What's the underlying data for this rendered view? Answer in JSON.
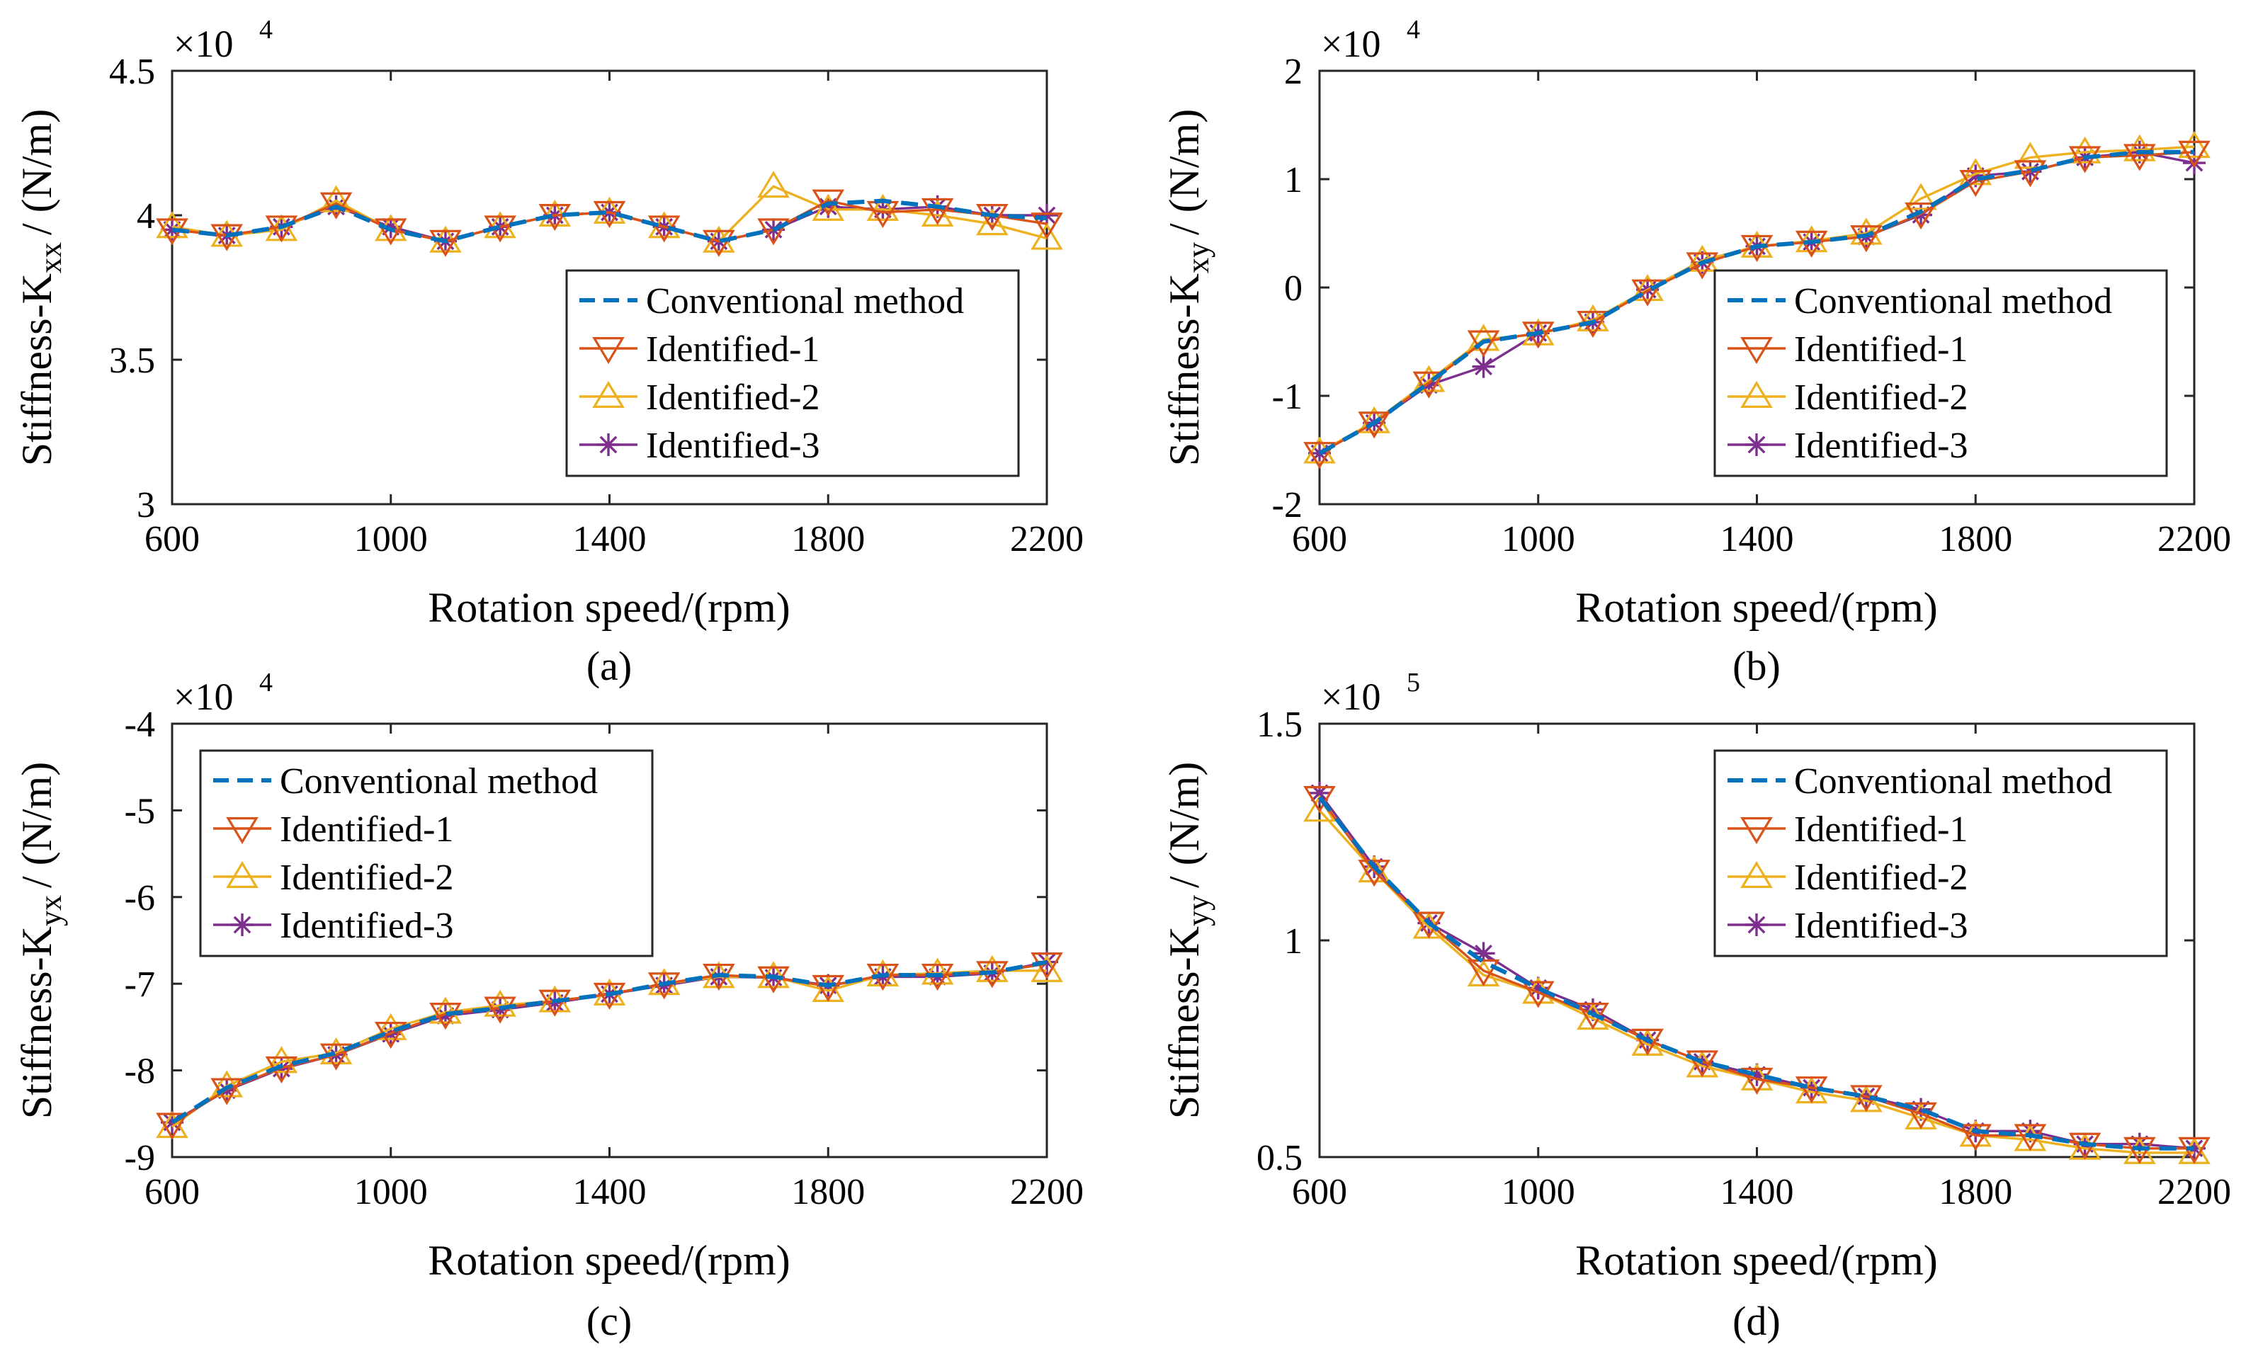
{
  "figure": {
    "colors": {
      "conventional": "#0072BD",
      "identified1": "#D95319",
      "identified2": "#EDB120",
      "identified3": "#7E2F8E"
    }
  },
  "chart_data": [
    {
      "type": "line",
      "caption": "(a)",
      "ylabel_main": "Stiffness-K",
      "ylabel_sub": "xx",
      "ylabel_unit": "/ (N/m)",
      "xlabel": "Rotation speed/(rpm)",
      "multiplier": "×10",
      "multiplier_exp": "4",
      "xlim": [
        600,
        2200
      ],
      "ylim": [
        3,
        4.5
      ],
      "xticks": [
        "600",
        "1000",
        "1400",
        "1800",
        "2200"
      ],
      "xtick_values": [
        600,
        1000,
        1400,
        1800,
        2200
      ],
      "yticks": [
        "3",
        "3.5",
        "4",
        "4.5"
      ],
      "ytick_values": [
        3,
        3.5,
        4,
        4.5
      ],
      "legend_position": "lower-right",
      "x": [
        600,
        700,
        800,
        900,
        1000,
        1100,
        1200,
        1300,
        1400,
        1500,
        1600,
        1700,
        1800,
        1900,
        2000,
        2100,
        2200
      ],
      "series": [
        {
          "name": "Conventional method",
          "style": "dashed",
          "values": [
            3.95,
            3.93,
            3.96,
            4.03,
            3.95,
            3.91,
            3.96,
            4.0,
            4.01,
            3.96,
            3.91,
            3.95,
            4.04,
            4.05,
            4.03,
            4.0,
            3.99
          ]
        },
        {
          "name": "Identified-1",
          "style": "triangle-down",
          "values": [
            3.95,
            3.93,
            3.96,
            4.04,
            3.95,
            3.91,
            3.96,
            4.0,
            4.01,
            3.96,
            3.91,
            3.95,
            4.05,
            4.01,
            4.02,
            4.0,
            3.97
          ]
        },
        {
          "name": "Identified-2",
          "style": "triangle-up",
          "values": [
            3.96,
            3.93,
            3.95,
            4.05,
            3.95,
            3.91,
            3.96,
            4.0,
            4.01,
            3.96,
            3.91,
            4.1,
            4.02,
            4.02,
            4.0,
            3.97,
            3.92
          ]
        },
        {
          "name": "Identified-3",
          "style": "star",
          "values": [
            3.95,
            3.93,
            3.96,
            4.03,
            3.96,
            3.91,
            3.96,
            4.0,
            4.01,
            3.96,
            3.91,
            3.95,
            4.03,
            4.02,
            4.03,
            4.0,
            4.0
          ]
        }
      ]
    },
    {
      "type": "line",
      "caption": "(b)",
      "ylabel_main": "Stiffness-K",
      "ylabel_sub": "xy",
      "ylabel_unit": "/ (N/m)",
      "xlabel": "Rotation speed/(rpm)",
      "multiplier": "×10",
      "multiplier_exp": "4",
      "xlim": [
        600,
        2200
      ],
      "ylim": [
        -2,
        2
      ],
      "xticks": [
        "600",
        "1000",
        "1400",
        "1800",
        "2200"
      ],
      "xtick_values": [
        600,
        1000,
        1400,
        1800,
        2200
      ],
      "yticks": [
        "-2",
        "-1",
        "0",
        "1",
        "2"
      ],
      "ytick_values": [
        -2,
        -1,
        0,
        1,
        2
      ],
      "legend_position": "lower-right",
      "x": [
        600,
        700,
        800,
        900,
        1000,
        1100,
        1200,
        1300,
        1400,
        1500,
        1600,
        1700,
        1800,
        1900,
        2000,
        2100,
        2200
      ],
      "series": [
        {
          "name": "Conventional method",
          "style": "dashed",
          "values": [
            -1.53,
            -1.25,
            -0.88,
            -0.5,
            -0.42,
            -0.32,
            -0.03,
            0.23,
            0.38,
            0.42,
            0.48,
            0.7,
            1.0,
            1.08,
            1.2,
            1.25,
            1.25
          ]
        },
        {
          "name": "Identified-1",
          "style": "triangle-down",
          "values": [
            -1.53,
            -1.25,
            -0.88,
            -0.5,
            -0.42,
            -0.32,
            -0.03,
            0.22,
            0.38,
            0.42,
            0.47,
            0.68,
            0.98,
            1.07,
            1.2,
            1.22,
            1.25
          ]
        },
        {
          "name": "Identified-2",
          "style": "triangle-up",
          "values": [
            -1.52,
            -1.24,
            -0.86,
            -0.48,
            -0.43,
            -0.3,
            -0.02,
            0.25,
            0.38,
            0.43,
            0.5,
            0.82,
            1.05,
            1.2,
            1.25,
            1.27,
            1.3
          ]
        },
        {
          "name": "Identified-3",
          "style": "star",
          "values": [
            -1.53,
            -1.25,
            -0.9,
            -0.73,
            -0.42,
            -0.32,
            -0.02,
            0.23,
            0.38,
            0.42,
            0.47,
            0.67,
            1.03,
            1.07,
            1.2,
            1.25,
            1.15
          ]
        }
      ]
    },
    {
      "type": "line",
      "caption": "(c)",
      "ylabel_main": "Stiffness-K",
      "ylabel_sub": "yx",
      "ylabel_unit": "/ (N/m)",
      "xlabel": "Rotation speed/(rpm)",
      "multiplier": "×10",
      "multiplier_exp": "4",
      "xlim": [
        600,
        2200
      ],
      "ylim": [
        -9,
        -4
      ],
      "xticks": [
        "600",
        "1000",
        "1400",
        "1800",
        "2200"
      ],
      "xtick_values": [
        600,
        1000,
        1400,
        1800,
        2200
      ],
      "yticks": [
        "-9",
        "-8",
        "-7",
        "-6",
        "-5",
        "-4"
      ],
      "ytick_values": [
        -9,
        -8,
        -7,
        -6,
        -5,
        -4
      ],
      "legend_position": "top-left",
      "x": [
        600,
        700,
        800,
        900,
        1000,
        1100,
        1200,
        1300,
        1400,
        1500,
        1600,
        1700,
        1800,
        1900,
        2000,
        2100,
        2200
      ],
      "series": [
        {
          "name": "Conventional method",
          "style": "dashed",
          "values": [
            -8.6,
            -8.2,
            -7.95,
            -7.8,
            -7.55,
            -7.35,
            -7.28,
            -7.2,
            -7.12,
            -7.0,
            -6.9,
            -6.92,
            -7.02,
            -6.9,
            -6.9,
            -6.87,
            -6.75
          ]
        },
        {
          "name": "Identified-1",
          "style": "triangle-down",
          "values": [
            -8.62,
            -8.22,
            -7.97,
            -7.82,
            -7.57,
            -7.35,
            -7.28,
            -7.2,
            -7.12,
            -7.0,
            -6.9,
            -6.93,
            -7.03,
            -6.9,
            -6.9,
            -6.87,
            -6.77
          ]
        },
        {
          "name": "Identified-2",
          "style": "triangle-up",
          "values": [
            -8.65,
            -8.18,
            -7.9,
            -7.8,
            -7.52,
            -7.33,
            -7.25,
            -7.2,
            -7.12,
            -7.0,
            -6.92,
            -6.92,
            -7.08,
            -6.9,
            -6.88,
            -6.85,
            -6.85
          ]
        },
        {
          "name": "Identified-3",
          "style": "star",
          "values": [
            -8.6,
            -8.23,
            -7.98,
            -7.82,
            -7.58,
            -7.37,
            -7.3,
            -7.22,
            -7.12,
            -7.02,
            -6.92,
            -6.93,
            -7.02,
            -6.92,
            -6.92,
            -6.88,
            -6.75
          ]
        }
      ]
    },
    {
      "type": "line",
      "caption": "(d)",
      "ylabel_main": "Stiffness-K",
      "ylabel_sub": "yy",
      "ylabel_unit": "/ (N/m)",
      "xlabel": "Rotation speed/(rpm)",
      "multiplier": "×10",
      "multiplier_exp": "5",
      "xlim": [
        600,
        2200
      ],
      "ylim": [
        0.5,
        1.5
      ],
      "xticks": [
        "600",
        "1000",
        "1400",
        "1800",
        "2200"
      ],
      "xtick_values": [
        600,
        1000,
        1400,
        1800,
        2200
      ],
      "yticks": [
        "0.5",
        "1",
        "1.5"
      ],
      "ytick_values": [
        0.5,
        1,
        1.5
      ],
      "legend_position": "top-right",
      "x": [
        600,
        700,
        800,
        900,
        1000,
        1100,
        1200,
        1300,
        1400,
        1500,
        1600,
        1700,
        1800,
        1900,
        2000,
        2100,
        2200
      ],
      "series": [
        {
          "name": "Conventional method",
          "style": "dashed",
          "values": [
            1.33,
            1.17,
            1.04,
            0.95,
            0.89,
            0.83,
            0.77,
            0.72,
            0.69,
            0.66,
            0.64,
            0.61,
            0.56,
            0.55,
            0.53,
            0.52,
            0.52
          ]
        },
        {
          "name": "Identified-1",
          "style": "triangle-down",
          "values": [
            1.33,
            1.16,
            1.04,
            0.93,
            0.88,
            0.83,
            0.77,
            0.72,
            0.68,
            0.66,
            0.64,
            0.6,
            0.55,
            0.55,
            0.53,
            0.52,
            0.52
          ]
        },
        {
          "name": "Identified-2",
          "style": "triangle-up",
          "values": [
            1.3,
            1.16,
            1.03,
            0.92,
            0.88,
            0.82,
            0.76,
            0.71,
            0.68,
            0.65,
            0.63,
            0.59,
            0.55,
            0.54,
            0.52,
            0.51,
            0.51
          ]
        },
        {
          "name": "Identified-3",
          "style": "star",
          "values": [
            1.34,
            1.17,
            1.04,
            0.97,
            0.89,
            0.84,
            0.77,
            0.72,
            0.69,
            0.66,
            0.64,
            0.61,
            0.56,
            0.56,
            0.53,
            0.53,
            0.52
          ]
        }
      ]
    }
  ]
}
